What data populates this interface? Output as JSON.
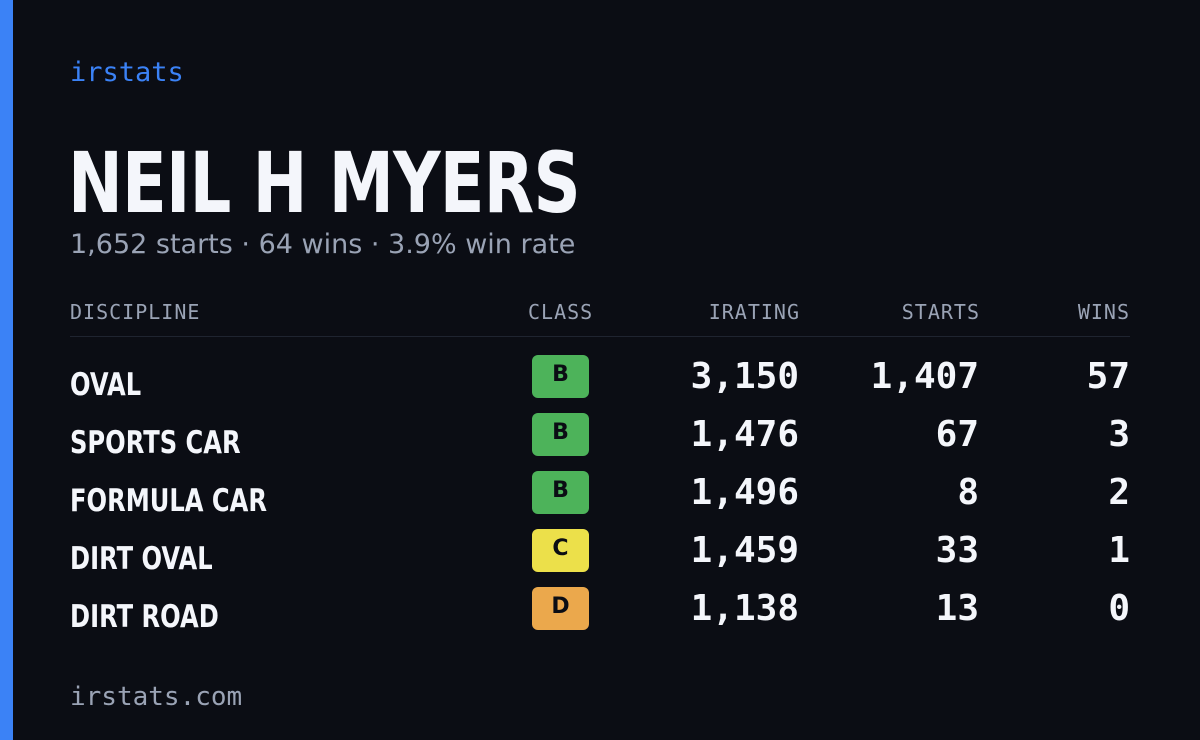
{
  "brand": "irstats",
  "driver": {
    "name": "NEIL H MYERS",
    "summary": "1,652 starts · 64 wins · 3.9% win rate"
  },
  "table": {
    "headers": {
      "discipline": "DISCIPLINE",
      "class": "CLASS",
      "irating": "IRATING",
      "starts": "STARTS",
      "wins": "WINS"
    },
    "rows": [
      {
        "discipline": "OVAL",
        "class": "B",
        "class_color": "#4db35a",
        "irating": "3,150",
        "starts": "1,407",
        "wins": "57"
      },
      {
        "discipline": "SPORTS CAR",
        "class": "B",
        "class_color": "#4db35a",
        "irating": "1,476",
        "starts": "67",
        "wins": "3"
      },
      {
        "discipline": "FORMULA CAR",
        "class": "B",
        "class_color": "#4db35a",
        "irating": "1,496",
        "starts": "8",
        "wins": "2"
      },
      {
        "discipline": "DIRT OVAL",
        "class": "C",
        "class_color": "#ece04a",
        "irating": "1,459",
        "starts": "33",
        "wins": "1"
      },
      {
        "discipline": "DIRT ROAD",
        "class": "D",
        "class_color": "#eba84c",
        "irating": "1,138",
        "starts": "13",
        "wins": "0"
      }
    ]
  },
  "footer": "irstats.com",
  "colors": {
    "accent": "#3b82f6",
    "background": "#0b0d14",
    "muted_text": "#9aa3b5"
  }
}
